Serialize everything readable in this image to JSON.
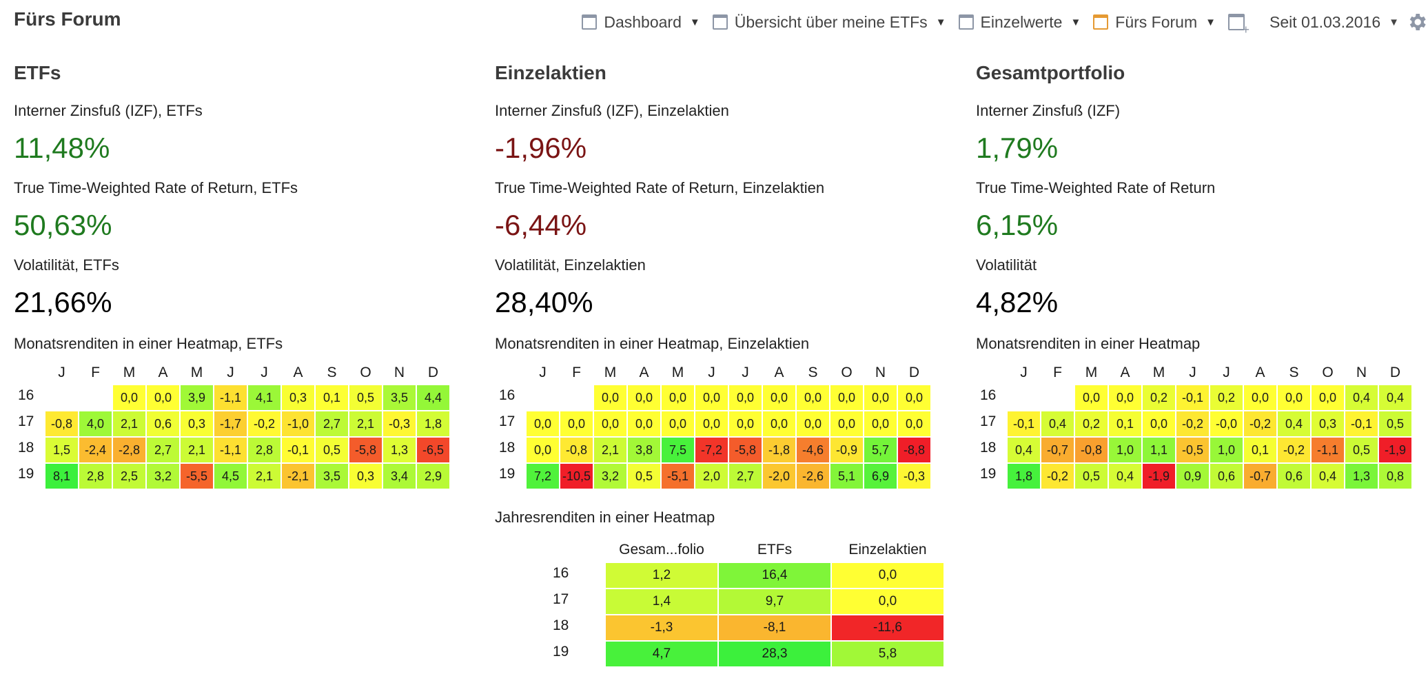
{
  "app_title": "Fürs Forum",
  "nav": {
    "items": [
      {
        "label": "Dashboard",
        "active": false
      },
      {
        "label": "Übersicht über meine ETFs",
        "active": false
      },
      {
        "label": "Einzelwerte",
        "active": false
      },
      {
        "label": "Fürs Forum",
        "active": true
      }
    ],
    "since": "Seit 01.03.2016"
  },
  "month_headers": [
    "J",
    "F",
    "M",
    "A",
    "M",
    "J",
    "J",
    "A",
    "S",
    "O",
    "N",
    "D"
  ],
  "columns": [
    {
      "title": "ETFs",
      "metrics": [
        {
          "label": "Interner Zinsfuß (IZF), ETFs",
          "value": "11,48%",
          "tone": "pos"
        },
        {
          "label": "True Time-Weighted Rate of Return, ETFs",
          "value": "50,63%",
          "tone": "pos"
        },
        {
          "label": "Volatilität, ETFs",
          "value": "21,66%",
          "tone": "neutral"
        }
      ],
      "heatmap_label": "Monatsrenditen in einer Heatmap, ETFs",
      "rows": [
        {
          "year": "16",
          "values": [
            null,
            null,
            "0,0",
            "0,0",
            "3,9",
            "-1,1",
            "4,1",
            "0,3",
            "0,1",
            "0,5",
            "3,5",
            "4,4"
          ]
        },
        {
          "year": "17",
          "values": [
            "-0,8",
            "4,0",
            "2,1",
            "0,6",
            "0,3",
            "-1,7",
            "-0,2",
            "-1,0",
            "2,7",
            "2,1",
            "-0,3",
            "1,8"
          ]
        },
        {
          "year": "18",
          "values": [
            "1,5",
            "-2,4",
            "-2,8",
            "2,7",
            "2,1",
            "-1,1",
            "2,8",
            "-0,1",
            "0,5",
            "-5,8",
            "1,3",
            "-6,5"
          ]
        },
        {
          "year": "19",
          "values": [
            "8,1",
            "2,8",
            "2,5",
            "3,2",
            "-5,5",
            "4,5",
            "2,1",
            "-2,1",
            "3,5",
            "0,3",
            "3,4",
            "2,9"
          ]
        }
      ]
    },
    {
      "title": "Einzelaktien",
      "metrics": [
        {
          "label": "Interner Zinsfuß (IZF), Einzelaktien",
          "value": "-1,96%",
          "tone": "neg"
        },
        {
          "label": "True Time-Weighted Rate of Return, Einzelaktien",
          "value": "-6,44%",
          "tone": "neg"
        },
        {
          "label": "Volatilität, Einzelaktien",
          "value": "28,40%",
          "tone": "neutral"
        }
      ],
      "heatmap_label": "Monatsrenditen in einer Heatmap, Einzelaktien",
      "rows": [
        {
          "year": "16",
          "values": [
            null,
            null,
            "0,0",
            "0,0",
            "0,0",
            "0,0",
            "0,0",
            "0,0",
            "0,0",
            "0,0",
            "0,0",
            "0,0"
          ]
        },
        {
          "year": "17",
          "values": [
            "0,0",
            "0,0",
            "0,0",
            "0,0",
            "0,0",
            "0,0",
            "0,0",
            "0,0",
            "0,0",
            "0,0",
            "0,0",
            "0,0"
          ]
        },
        {
          "year": "18",
          "values": [
            "0,0",
            "-0,8",
            "2,1",
            "3,8",
            "7,5",
            "-7,2",
            "-5,8",
            "-1,8",
            "-4,6",
            "-0,9",
            "5,7",
            "-8,8"
          ]
        },
        {
          "year": "19",
          "values": [
            "7,2",
            "-10,5",
            "3,2",
            "0,5",
            "-5,1",
            "2,0",
            "2,7",
            "-2,0",
            "-2,6",
            "5,1",
            "6,9",
            "-0,3"
          ]
        }
      ]
    },
    {
      "title": "Gesamtportfolio",
      "metrics": [
        {
          "label": "Interner Zinsfuß (IZF)",
          "value": "1,79%",
          "tone": "pos"
        },
        {
          "label": "True Time-Weighted Rate of Return",
          "value": "6,15%",
          "tone": "pos"
        },
        {
          "label": "Volatilität",
          "value": "4,82%",
          "tone": "neutral"
        }
      ],
      "heatmap_label": "Monatsrenditen in einer Heatmap",
      "rows": [
        {
          "year": "16",
          "values": [
            null,
            null,
            "0,0",
            "0,0",
            "0,2",
            "-0,1",
            "0,2",
            "0,0",
            "0,0",
            "0,0",
            "0,4",
            "0,4"
          ]
        },
        {
          "year": "17",
          "values": [
            "-0,1",
            "0,4",
            "0,2",
            "0,1",
            "0,0",
            "-0,2",
            "-0,0",
            "-0,2",
            "0,4",
            "0,3",
            "-0,1",
            "0,5"
          ]
        },
        {
          "year": "18",
          "values": [
            "0,4",
            "-0,7",
            "-0,8",
            "1,0",
            "1,1",
            "-0,5",
            "1,0",
            "0,1",
            "-0,2",
            "-1,1",
            "0,5",
            "-1,9"
          ]
        },
        {
          "year": "19",
          "values": [
            "1,8",
            "-0,2",
            "0,5",
            "0,4",
            "-1,9",
            "0,9",
            "0,6",
            "-0,7",
            "0,6",
            "0,4",
            "1,3",
            "0,8"
          ]
        }
      ]
    }
  ],
  "yearly": {
    "label": "Jahresrenditen in einer Heatmap",
    "headers": [
      "Gesam...folio",
      "ETFs",
      "Einzelaktien"
    ],
    "rows": [
      {
        "year": "16",
        "values": [
          "1,2",
          "16,4",
          "0,0"
        ]
      },
      {
        "year": "17",
        "values": [
          "1,4",
          "9,7",
          "0,0"
        ]
      },
      {
        "year": "18",
        "values": [
          "-1,3",
          "-8,1",
          "-11,6"
        ]
      },
      {
        "year": "19",
        "values": [
          "4,7",
          "28,3",
          "5,8"
        ]
      }
    ]
  }
}
